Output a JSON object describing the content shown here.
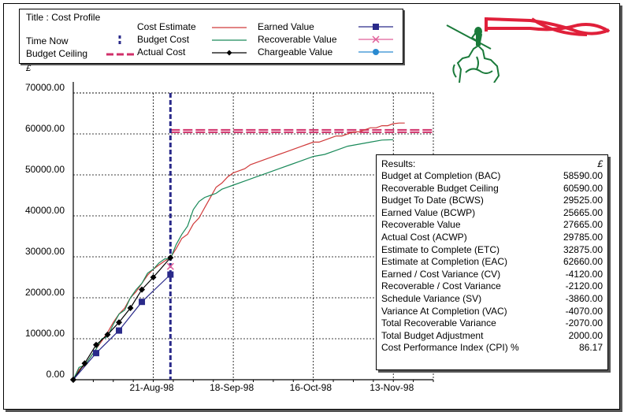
{
  "legend": {
    "title": "Title :  Cost Profile",
    "time_now": "Time Now",
    "budget_ceiling": "Budget Ceiling",
    "cost_estimate": "Cost Estimate",
    "budget_cost": "Budget Cost",
    "actual_cost": "Actual Cost",
    "earned_value": "Earned Value",
    "recoverable_value": "Recoverable Value",
    "chargeable_value": "Chargeable Value"
  },
  "colors": {
    "cost_estimate": "#d03a3a",
    "budget_cost": "#1a8a5a",
    "actual_cost": "#000000",
    "earned_value": "#2a2a8a",
    "recoverable_value": "#e0609a",
    "chargeable_value": "#2a8ad0",
    "time_now": "#2a2a8a",
    "budget_ceiling": "#d0306a",
    "logo": "#1a7a3a",
    "flag": "#e0203a"
  },
  "logo": {
    "icon": "knight-on-horse-logo"
  },
  "chart_data": {
    "type": "line",
    "currency_label": "£",
    "y_ticks": [
      "70000.00",
      "60000.00",
      "50000.00",
      "40000.00",
      "30000.00",
      "20000.00",
      "10000.00",
      "0.00"
    ],
    "x_ticks": [
      "21-Aug-98",
      "18-Sep-98",
      "16-Oct-98",
      "13-Nov-98"
    ],
    "ylim": [
      0,
      70000
    ],
    "x_range_days": [
      0,
      126
    ],
    "x_tick_days": [
      28,
      56,
      84,
      112
    ],
    "time_now_day": 34,
    "budget_ceiling": 60590,
    "grid": true,
    "series": [
      {
        "name": "Cost Estimate",
        "key": "cost_estimate",
        "x": [
          0,
          2,
          4,
          6,
          8,
          10,
          12,
          14,
          16,
          18,
          20,
          22,
          24,
          26,
          28,
          30,
          32,
          34,
          36,
          38,
          40,
          42,
          44,
          46,
          48,
          50,
          52,
          54,
          56,
          58,
          60,
          62,
          64,
          66,
          68,
          70,
          72,
          74,
          76,
          78,
          80,
          82,
          84,
          86,
          88,
          90,
          92,
          94,
          96,
          98,
          100,
          102,
          104,
          106,
          108,
          110,
          112,
          114,
          116
        ],
        "y": [
          0,
          2500,
          3500,
          5500,
          7500,
          9500,
          11500,
          14000,
          16000,
          17500,
          20000,
          21500,
          23500,
          25500,
          27000,
          28000,
          29000,
          29785,
          32000,
          34500,
          35500,
          38000,
          39500,
          42000,
          44500,
          47000,
          48000,
          49500,
          50500,
          51000,
          51500,
          52500,
          53000,
          53500,
          54000,
          54500,
          55000,
          55500,
          56000,
          56500,
          57000,
          57500,
          58000,
          58000,
          58500,
          59000,
          59500,
          59500,
          60000,
          60500,
          60500,
          61000,
          61500,
          61500,
          62000,
          62000,
          62500,
          62660,
          62660
        ]
      },
      {
        "name": "Budget Cost",
        "key": "budget_cost",
        "x": [
          0,
          2,
          4,
          6,
          8,
          10,
          12,
          14,
          16,
          18,
          20,
          22,
          24,
          26,
          28,
          30,
          32,
          34,
          36,
          38,
          40,
          42,
          44,
          46,
          48,
          50,
          52,
          54,
          56,
          60,
          64,
          68,
          72,
          76,
          80,
          84,
          88,
          92,
          96,
          100,
          104,
          108,
          112
        ],
        "y": [
          0,
          3000,
          3500,
          5500,
          7500,
          10000,
          10500,
          13500,
          16000,
          17000,
          20000,
          22000,
          23500,
          26000,
          27000,
          28500,
          29500,
          29525,
          33000,
          35500,
          37500,
          41500,
          43500,
          44500,
          45000,
          45500,
          46500,
          47000,
          47500,
          48500,
          49500,
          50500,
          51500,
          52500,
          53500,
          54500,
          55000,
          56000,
          57000,
          57500,
          58000,
          58500,
          58590
        ]
      },
      {
        "name": "Actual Cost",
        "key": "actual_cost",
        "x": [
          0,
          4,
          8,
          12,
          16,
          20,
          24,
          28,
          34
        ],
        "y": [
          0,
          4000,
          8500,
          11000,
          14000,
          17500,
          22000,
          25000,
          29785
        ]
      },
      {
        "name": "Earned Value",
        "key": "earned_value",
        "x": [
          0,
          8,
          16,
          24,
          34
        ],
        "y": [
          0,
          6500,
          12000,
          19000,
          25665
        ]
      },
      {
        "name": "Recoverable Value",
        "key": "recoverable_value",
        "x": [
          34
        ],
        "y": [
          27665
        ]
      },
      {
        "name": "Chargeable Value",
        "key": "chargeable_value",
        "x": [],
        "y": []
      }
    ]
  },
  "results": {
    "title": "Results:",
    "currency": "£",
    "rows": [
      {
        "label": "Budget at Completion (BAC)",
        "value": "58590.00"
      },
      {
        "label": "Recoverable Budget Ceiling",
        "value": "60590.00"
      },
      {
        "label": "Budget To Date (BCWS)",
        "value": "29525.00"
      },
      {
        "label": "Earned Value (BCWP)",
        "value": "25665.00"
      },
      {
        "label": "Recoverable Value",
        "value": "27665.00"
      },
      {
        "label": "Actual Cost (ACWP)",
        "value": "29785.00"
      },
      {
        "label": "Estimate to Complete (ETC)",
        "value": "32875.00"
      },
      {
        "label": "Estimate at Completion (EAC)",
        "value": "62660.00"
      },
      {
        "label": "Earned / Cost Variance (CV)",
        "value": "-4120.00"
      },
      {
        "label": "Recoverable / Cost Variance",
        "value": "-2120.00"
      },
      {
        "label": "Schedule Variance (SV)",
        "value": "-3860.00"
      },
      {
        "label": "Variance At Completion (VAC)",
        "value": "-4070.00"
      },
      {
        "label": "Total Recoverable Variance",
        "value": "-2070.00"
      },
      {
        "label": "Total Budget Adjustment",
        "value": "2000.00"
      },
      {
        "label": "Cost Performance Index (CPI) %",
        "value": "86.17"
      }
    ]
  }
}
